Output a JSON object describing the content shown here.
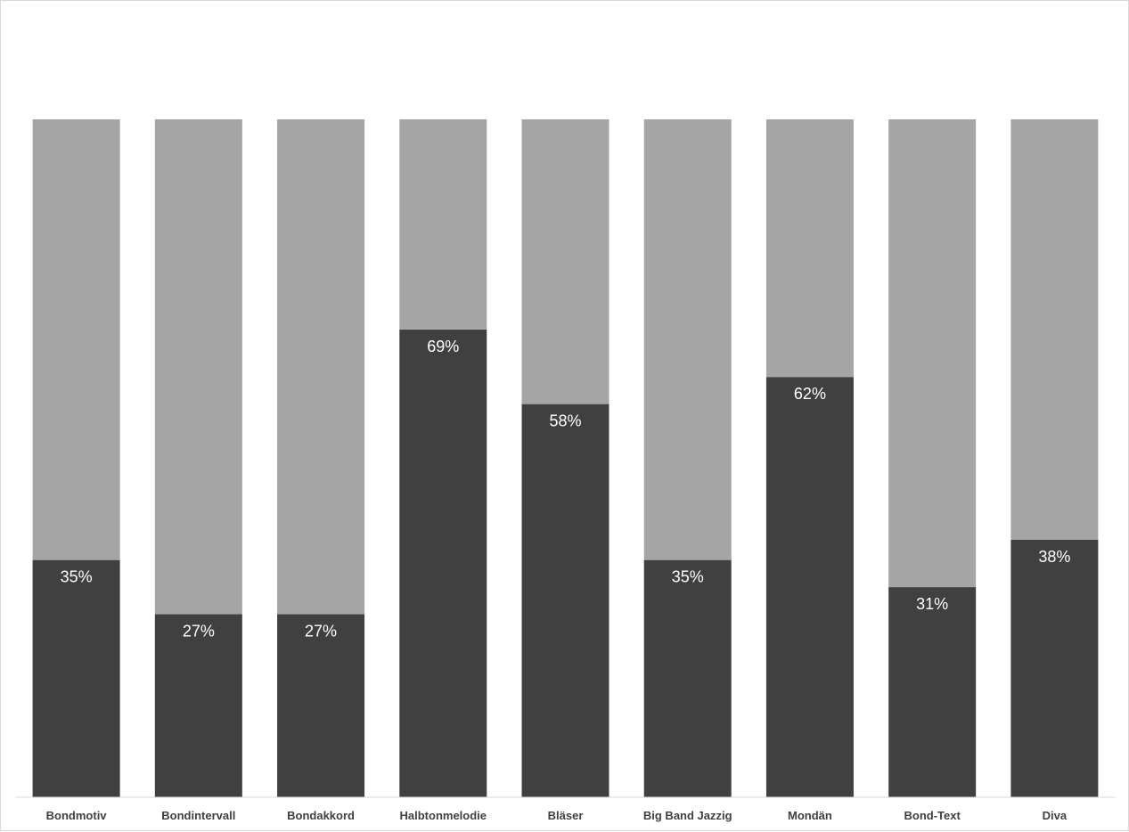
{
  "chart_data": {
    "type": "bar",
    "stacked": true,
    "percent_stacked": true,
    "title": "",
    "xlabel": "",
    "ylabel": "",
    "ylim": [
      0,
      100
    ],
    "grid": false,
    "legend": "none",
    "categories": [
      "Bondmotiv",
      "Bondintervall",
      "Bondakkord",
      "Halbtonmelodie",
      "Bläser",
      "Big Band Jazzig",
      "Mondän",
      "Bond-Text",
      "Diva"
    ],
    "series": [
      {
        "color": "#404040",
        "values": [
          35,
          27,
          27,
          69,
          58,
          35,
          62,
          31,
          38
        ],
        "labels": [
          "35%",
          "27%",
          "27%",
          "69%",
          "58%",
          "35%",
          "62%",
          "31%",
          "38%"
        ]
      },
      {
        "color": "#a5a5a5",
        "values": [
          65,
          73,
          73,
          31,
          42,
          65,
          38,
          69,
          62
        ]
      }
    ],
    "axis_color": "#d9d9d9"
  }
}
